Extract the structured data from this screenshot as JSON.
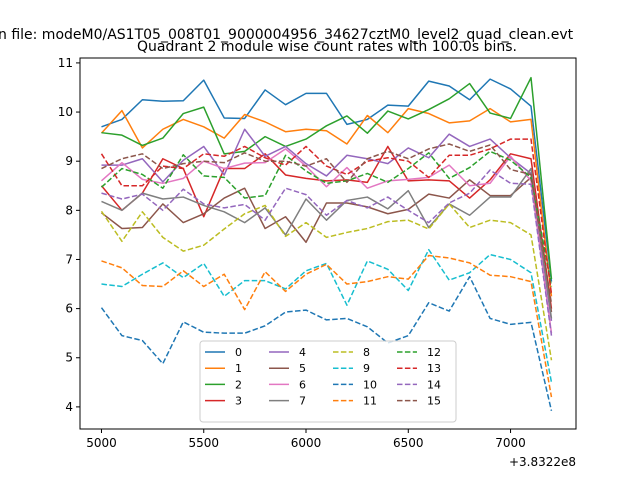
{
  "figure": {
    "suptitle": "n file: modeM0/AS1T05_008T01_9000004956_34627cztM0_level2_quad_clean.evt"
  },
  "chart_data": {
    "type": "line",
    "title": "Quadrant 2 module wise count rates with 100.0s bins.",
    "xlabel": "",
    "ylabel": "",
    "x_offset_label": "+3.8322e8",
    "xlim": [
      4895,
      7320
    ],
    "ylim": [
      3.55,
      11.1
    ],
    "xticks": [
      5000,
      5500,
      6000,
      6500,
      7000
    ],
    "yticks": [
      4,
      5,
      6,
      7,
      8,
      9,
      10,
      11
    ],
    "x": [
      5000,
      5100,
      5200,
      5300,
      5400,
      5500,
      5600,
      5700,
      5800,
      5900,
      6000,
      6100,
      6200,
      6300,
      6400,
      6500,
      6600,
      6700,
      6800,
      6900,
      7000,
      7100,
      7200
    ],
    "legend": {
      "placement": "lower-center",
      "columns": 4
    },
    "series": [
      {
        "name": "0",
        "color": "#1f77b4",
        "dash": "solid",
        "values": [
          9.7,
          9.85,
          10.25,
          10.22,
          10.23,
          10.65,
          9.88,
          9.87,
          10.45,
          10.15,
          10.38,
          10.38,
          9.75,
          9.85,
          10.14,
          10.12,
          10.63,
          10.53,
          10.25,
          10.67,
          10.47,
          10.12,
          6.55
        ]
      },
      {
        "name": "1",
        "color": "#ff7f0e",
        "dash": "solid",
        "values": [
          9.57,
          10.03,
          9.27,
          9.65,
          9.85,
          9.7,
          9.47,
          9.95,
          9.8,
          9.6,
          9.65,
          9.62,
          9.35,
          9.93,
          9.58,
          10.07,
          9.97,
          9.78,
          9.82,
          10.07,
          9.8,
          9.85,
          6.25
        ]
      },
      {
        "name": "2",
        "color": "#2ca02c",
        "dash": "solid",
        "values": [
          9.58,
          9.53,
          9.32,
          9.47,
          9.97,
          10.1,
          9.15,
          9.2,
          9.5,
          9.3,
          9.45,
          9.72,
          9.92,
          9.57,
          10.02,
          9.86,
          10.05,
          10.27,
          10.58,
          9.98,
          9.87,
          10.7,
          6.6
        ]
      },
      {
        "name": "3",
        "color": "#d62728",
        "dash": "solid",
        "values": [
          8.5,
          8.0,
          8.35,
          9.05,
          8.85,
          7.87,
          8.85,
          8.85,
          9.15,
          8.72,
          8.65,
          8.6,
          8.62,
          8.57,
          9.3,
          8.6,
          8.62,
          8.6,
          8.25,
          8.62,
          9.15,
          9.05,
          6.0
        ]
      },
      {
        "name": "4",
        "color": "#9467bd",
        "dash": "solid",
        "values": [
          8.92,
          8.92,
          9.05,
          8.58,
          9.02,
          9.3,
          8.72,
          9.65,
          9.1,
          9.3,
          8.95,
          8.7,
          9.12,
          9.05,
          8.95,
          9.27,
          9.07,
          9.55,
          9.3,
          9.45,
          9.07,
          8.75,
          5.75
        ]
      },
      {
        "name": "5",
        "color": "#8c564b",
        "dash": "solid",
        "values": [
          7.95,
          7.63,
          7.65,
          8.13,
          7.75,
          7.93,
          8.25,
          8.45,
          7.63,
          7.87,
          7.35,
          8.15,
          8.15,
          8.07,
          7.93,
          8.02,
          8.33,
          8.25,
          8.62,
          8.3,
          8.3,
          8.67,
          5.93
        ]
      },
      {
        "name": "6",
        "color": "#e377c2",
        "dash": "solid",
        "values": [
          8.6,
          8.97,
          8.63,
          8.55,
          8.65,
          9.0,
          8.85,
          8.96,
          8.97,
          9.25,
          8.9,
          8.48,
          8.87,
          8.45,
          8.6,
          8.63,
          8.67,
          8.92,
          8.5,
          8.55,
          9.1,
          8.6,
          5.5
        ]
      },
      {
        "name": "7",
        "color": "#7f7f7f",
        "dash": "solid",
        "values": [
          8.18,
          8.0,
          8.35,
          8.23,
          8.27,
          8.1,
          7.97,
          7.75,
          8.05,
          7.5,
          8.23,
          7.8,
          8.2,
          8.27,
          8.03,
          8.4,
          7.65,
          8.13,
          7.9,
          8.27,
          8.27,
          8.85,
          5.8
        ]
      },
      {
        "name": "8",
        "color": "#bcbd22",
        "dash": "dashed",
        "values": [
          7.98,
          7.37,
          7.97,
          7.45,
          7.17,
          7.29,
          7.62,
          7.93,
          8.1,
          7.47,
          7.75,
          7.45,
          7.55,
          7.63,
          7.77,
          7.8,
          7.62,
          8.13,
          7.65,
          7.8,
          7.75,
          7.5,
          4.95
        ]
      },
      {
        "name": "9",
        "color": "#17becf",
        "dash": "dashed",
        "values": [
          6.5,
          6.45,
          6.7,
          6.93,
          6.63,
          6.92,
          6.25,
          6.57,
          6.57,
          6.4,
          6.77,
          6.92,
          6.07,
          6.97,
          6.8,
          6.37,
          7.2,
          6.58,
          6.73,
          7.1,
          7.0,
          6.73,
          4.5
        ]
      },
      {
        "name": "10",
        "color": "#1f77b4",
        "dash": "dashed",
        "values": [
          6.02,
          5.45,
          5.35,
          4.88,
          5.73,
          5.52,
          5.5,
          5.5,
          5.65,
          5.93,
          5.97,
          5.77,
          5.8,
          5.63,
          5.3,
          5.45,
          6.12,
          5.95,
          6.65,
          5.8,
          5.68,
          5.72,
          3.92
        ]
      },
      {
        "name": "11",
        "color": "#ff7f0e",
        "dash": "dashed",
        "values": [
          6.97,
          6.83,
          6.47,
          6.45,
          6.77,
          6.45,
          6.7,
          5.98,
          6.75,
          6.35,
          6.7,
          6.9,
          6.5,
          6.55,
          6.65,
          6.6,
          7.08,
          7.03,
          6.93,
          6.68,
          6.65,
          6.55,
          4.2
        ]
      },
      {
        "name": "12",
        "color": "#2ca02c",
        "dash": "dashed",
        "values": [
          8.47,
          8.85,
          8.73,
          8.45,
          9.13,
          8.7,
          8.67,
          8.25,
          8.3,
          9.12,
          8.8,
          8.55,
          8.6,
          8.75,
          8.57,
          8.85,
          9.17,
          8.65,
          8.87,
          9.2,
          9.02,
          8.67,
          6.45
        ]
      },
      {
        "name": "13",
        "color": "#d62728",
        "dash": "dashed",
        "values": [
          9.15,
          8.5,
          8.5,
          8.9,
          8.85,
          9.15,
          9.1,
          9.3,
          9.07,
          8.92,
          9.3,
          8.9,
          8.73,
          9.0,
          9.07,
          9.0,
          8.67,
          9.12,
          9.12,
          9.25,
          9.45,
          9.45,
          6.3
        ]
      },
      {
        "name": "14",
        "color": "#9467bd",
        "dash": "dashed",
        "values": [
          8.35,
          8.23,
          8.33,
          8.0,
          8.43,
          8.13,
          8.05,
          8.12,
          7.8,
          8.45,
          8.32,
          7.9,
          8.2,
          8.05,
          8.27,
          8.0,
          7.75,
          8.15,
          8.35,
          8.82,
          8.55,
          8.53,
          5.45
        ]
      },
      {
        "name": "15",
        "color": "#8c564b",
        "dash": "dashed",
        "values": [
          8.85,
          9.05,
          9.15,
          8.85,
          8.95,
          9.0,
          8.97,
          9.17,
          9.0,
          9.0,
          8.9,
          9.05,
          8.57,
          9.05,
          9.2,
          9.05,
          9.25,
          9.35,
          9.2,
          9.33,
          8.83,
          8.73,
          6.1
        ]
      }
    ]
  }
}
